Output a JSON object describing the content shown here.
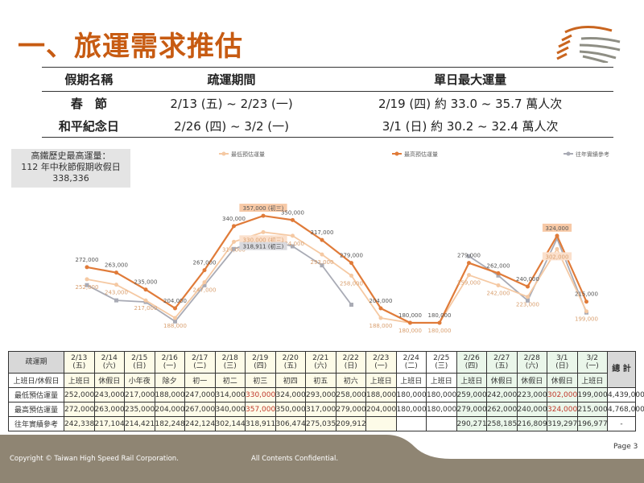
{
  "title": "一、旅運需求推估",
  "summary": {
    "headers": [
      "假期名稱",
      "疏運期間",
      "單日最大運量"
    ],
    "rows": [
      [
        "春　節",
        "2/13 (五) ~ 2/23 (一)",
        "2/19 (四) 約 33.0 ~ 35.7 萬人次"
      ],
      [
        "和平紀念日",
        "2/26 (四) ~ 3/2  (一)",
        "3/1 (日) 約 30.2 ~ 32.4 萬人次"
      ]
    ]
  },
  "record_box": {
    "line1": "高鐵歷史最高運量：",
    "line2": "112 年中秋節假期收假日",
    "line3": "338,336"
  },
  "chart_data": {
    "type": "line",
    "categories": [
      "2/13",
      "2/14",
      "2/15",
      "2/16",
      "2/17",
      "2/18",
      "2/19",
      "2/20",
      "2/21",
      "2/22",
      "2/23",
      "2/24",
      "2/25",
      "2/26",
      "2/27",
      "2/28",
      "3/1",
      "3/2"
    ],
    "legend_position": "top",
    "grid": false,
    "series": [
      {
        "name": "最低預估運量",
        "color": "#f5c9a3",
        "values": [
          252000,
          243000,
          217000,
          188000,
          247000,
          314000,
          330000,
          324000,
          293000,
          258000,
          188000,
          180000,
          180000,
          259000,
          242000,
          223000,
          302000,
          199000
        ]
      },
      {
        "name": "最高預估運量",
        "color": "#e07b39",
        "values": [
          272000,
          263000,
          235000,
          204000,
          267000,
          340000,
          357000,
          350000,
          317000,
          279000,
          204000,
          180000,
          180000,
          279000,
          262000,
          240000,
          324000,
          215000
        ]
      },
      {
        "name": "往年實績參考",
        "color": "#a9abb5",
        "values": [
          242338,
          217104,
          214421,
          182248,
          242124,
          302144,
          318911,
          306474,
          275035,
          209912,
          null,
          null,
          null,
          290271,
          258185,
          216809,
          319297,
          196977
        ]
      }
    ],
    "annotations": [
      {
        "series": 1,
        "index": 6,
        "text": "357,000 (初三)"
      },
      {
        "series": 0,
        "index": 6,
        "text": "330,000 (初三)"
      },
      {
        "series": 2,
        "index": 6,
        "text": "318,911 (初三)"
      },
      {
        "series": 1,
        "index": 16,
        "text": "324,000"
      },
      {
        "series": 0,
        "index": 16,
        "text": "302,000"
      }
    ]
  },
  "table": {
    "corner": "疏運期",
    "dates": [
      [
        "2/13",
        "(五)"
      ],
      [
        "2/14",
        "(六)"
      ],
      [
        "2/15",
        "(日)"
      ],
      [
        "2/16",
        "(一)"
      ],
      [
        "2/17",
        "(二)"
      ],
      [
        "2/18",
        "(三)"
      ],
      [
        "2/19",
        "(四)"
      ],
      [
        "2/20",
        "(五)"
      ],
      [
        "2/21",
        "(六)"
      ],
      [
        "2/22",
        "(日)"
      ],
      [
        "2/23",
        "(一)"
      ],
      [
        "2/24",
        "(二)"
      ],
      [
        "2/25",
        "(三)"
      ],
      [
        "2/26",
        "(四)"
      ],
      [
        "2/27",
        "(五)"
      ],
      [
        "2/28",
        "(六)"
      ],
      [
        "3/1",
        "(日)"
      ],
      [
        "3/2",
        "(一)"
      ]
    ],
    "total_label": "總 計",
    "rows": [
      {
        "label": "上班日/休假日",
        "cells": [
          "上班日",
          "休假日",
          "小年夜",
          "除夕",
          "初一",
          "初二",
          "初三",
          "初四",
          "初五",
          "初六",
          "上班日",
          "上班日",
          "上班日",
          "上班日",
          "休假日",
          "休假日",
          "休假日",
          "上班日"
        ]
      },
      {
        "label": "最低預估運量",
        "cells": [
          "252,000",
          "243,000",
          "217,000",
          "188,000",
          "247,000",
          "314,000",
          "330,000",
          "324,000",
          "293,000",
          "258,000",
          "188,000",
          "180,000",
          "180,000",
          "259,000",
          "242,000",
          "223,000",
          "302,000",
          "199,000"
        ],
        "total": "4,439,000"
      },
      {
        "label": "最高預估運量",
        "cells": [
          "272,000",
          "263,000",
          "235,000",
          "204,000",
          "267,000",
          "340,000",
          "357,000",
          "350,000",
          "317,000",
          "279,000",
          "204,000",
          "180,000",
          "180,000",
          "279,000",
          "262,000",
          "240,000",
          "324,000",
          "215,000"
        ],
        "total": "4,768,000"
      },
      {
        "label": "往年實績參考",
        "cells": [
          "242,338",
          "217,104",
          "214,421",
          "182,248",
          "242,124",
          "302,144",
          "318,911",
          "306,474",
          "275,035",
          "209,912",
          "",
          "",
          "",
          "290,271",
          "258,185",
          "216,809",
          "319,297",
          "196,977"
        ],
        "total": "-"
      }
    ]
  },
  "footer": {
    "copyright": "Copyright ©  Taiwan High Speed Rail Corporation.",
    "confidential": "All Contents Confidential.",
    "page": "Page 3"
  }
}
